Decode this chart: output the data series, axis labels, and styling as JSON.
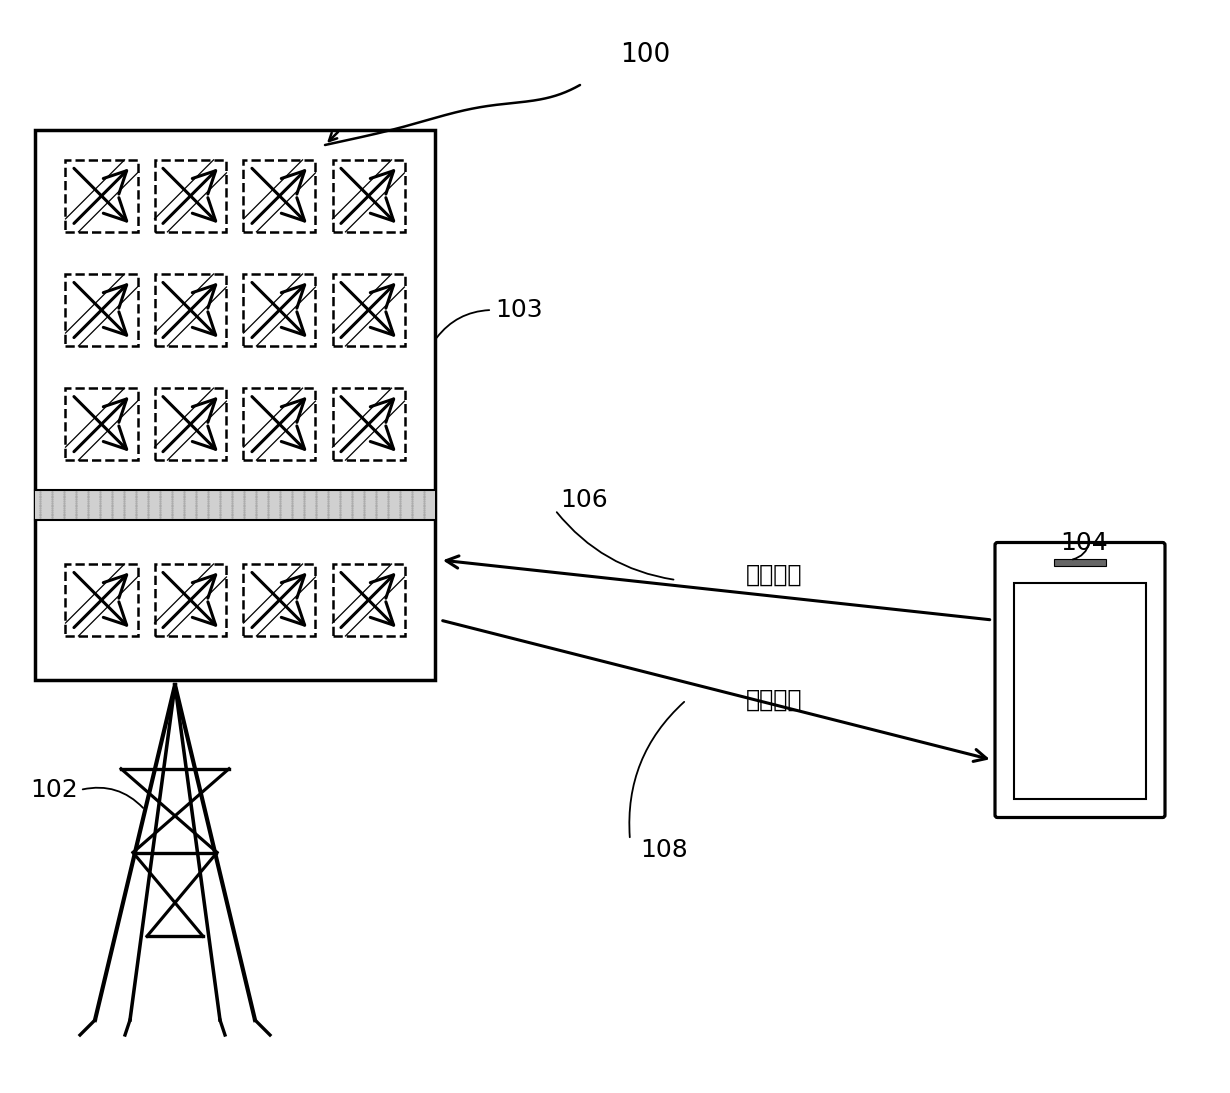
{
  "bg_color": "#ffffff",
  "label_100": "100",
  "label_102": "102",
  "label_103": "103",
  "label_104": "104",
  "label_106": "106",
  "label_108": "108",
  "label_downlink": "下行链路",
  "label_uplink": "上行链路"
}
